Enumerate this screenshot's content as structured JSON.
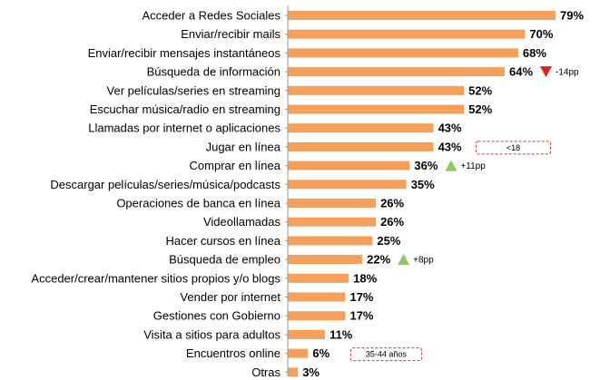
{
  "chart_data": {
    "type": "bar",
    "orientation": "horizontal",
    "categories": [
      "Acceder a Redes Sociales",
      "Enviar/recibir mails",
      "Enviar/recibir mensajes instantáneos",
      "Búsqueda de información",
      "Ver películas/series en streaming",
      "Escuchar música/radio en streaming",
      "Llamadas por internet o aplicaciones",
      "Jugar en línea",
      "Comprar en línea",
      "Descargar películas/series/música/podcasts",
      "Operaciones de banca en línea",
      "Videollamadas",
      "Hacer cursos en línea",
      "Búsqueda de empleo",
      "Acceder/crear/mantener sitios propios y/o blogs",
      "Vender por internet",
      "Gestiones con Gobierno",
      "Visita a sitios para adultos",
      "Encuentros online",
      "Otras"
    ],
    "values": [
      79,
      70,
      68,
      64,
      52,
      52,
      43,
      43,
      36,
      35,
      26,
      26,
      25,
      22,
      18,
      17,
      17,
      11,
      6,
      3
    ],
    "value_labels": [
      "79%",
      "70%",
      "68%",
      "64%",
      "52%",
      "52%",
      "43%",
      "43%",
      "36%",
      "35%",
      "26%",
      "26%",
      "25%",
      "22%",
      "18%",
      "17%",
      "17%",
      "11%",
      "6%",
      "3%"
    ],
    "xlim": [
      0,
      100
    ],
    "grid": false,
    "legend": "none",
    "bar_color": "#f5a05a",
    "axis_color": "#999999",
    "annotations": [
      {
        "category_index": 3,
        "kind": "arrow-down",
        "text": "-14pp",
        "color": "#e02020"
      },
      {
        "category_index": 7,
        "kind": "badge",
        "text": "<18",
        "color": "#e03030"
      },
      {
        "category_index": 8,
        "kind": "arrow-up",
        "text": "+11pp",
        "color": "#8cc85a"
      },
      {
        "category_index": 13,
        "kind": "arrow-up",
        "text": "+8pp",
        "color": "#8cc85a"
      },
      {
        "category_index": 18,
        "kind": "badge",
        "text": "35-44 años",
        "color": "#e03030"
      }
    ]
  }
}
